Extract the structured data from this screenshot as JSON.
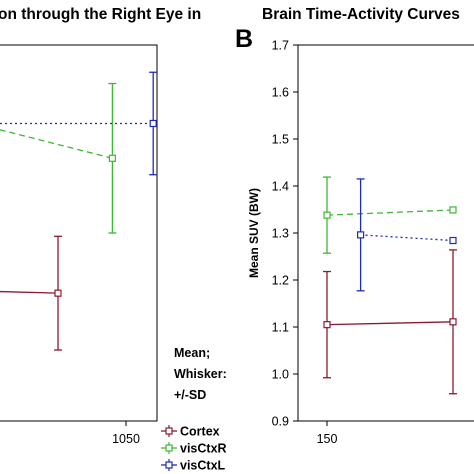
{
  "chart_data": [
    {
      "type": "line",
      "title": "on through the Right Eye in",
      "x_ticks": [
        {
          "value": 1050,
          "label": "1050"
        }
      ],
      "ylim": [
        0.9,
        1.7
      ],
      "series": [
        {
          "name": "Cortex",
          "color": "#8b1a2e",
          "dash": "solid",
          "points": [
            {
              "x": 950,
              "y": 1.176,
              "sd": null
            },
            {
              "x": 1000,
              "y": 1.172,
              "sd": 0.121
            }
          ]
        },
        {
          "name": "visCtxR",
          "color": "#3cb832",
          "dash": "6,4",
          "points": [
            {
              "x": 950,
              "y": 1.525,
              "sd": null
            },
            {
              "x": 1040,
              "y": 1.459,
              "sd": 0.159
            }
          ]
        },
        {
          "name": "visCtxL",
          "color": "#1e2cb4",
          "dash": "2,3",
          "points": [
            {
              "x": 950,
              "y": 1.533,
              "sd": null
            },
            {
              "x": 1070,
              "y": 1.533,
              "sd": 0.109
            }
          ]
        }
      ]
    },
    {
      "type": "line",
      "panel_label": "B",
      "title": "Brain Time-Activity Curves",
      "ylabel": "Mean SUV (BW)",
      "ylim": [
        0.9,
        1.7
      ],
      "y_ticks": [
        "1.7",
        "1.6",
        "1.5",
        "1.4",
        "1.3",
        "1.2",
        "1.1",
        "1.0",
        "0.9"
      ],
      "x_ticks": [
        {
          "value": 150,
          "label": "150"
        }
      ],
      "series": [
        {
          "name": "Cortex",
          "color": "#8b1a2e",
          "dash": "solid",
          "points": [
            {
              "x": 150,
              "y": 1.105,
              "sd": 0.113
            },
            {
              "x": 300,
              "y": 1.111,
              "sd": 0.153
            }
          ]
        },
        {
          "name": "visCtxR",
          "color": "#3cb832",
          "dash": "6,4",
          "points": [
            {
              "x": 150,
              "y": 1.338,
              "sd": 0.081
            },
            {
              "x": 300,
              "y": 1.349,
              "sd": null
            }
          ]
        },
        {
          "name": "visCtxL",
          "color": "#1e2cb4",
          "dash": "2,3",
          "points": [
            {
              "x": 190,
              "y": 1.296,
              "sd": 0.119
            },
            {
              "x": 300,
              "y": 1.284,
              "sd": null
            }
          ]
        }
      ]
    }
  ],
  "legend": {
    "note_line1": "Mean;",
    "note_line2": "Whisker:",
    "note_line3": "+/-SD",
    "items": [
      "Cortex",
      "visCtxR",
      "visCtxL"
    ]
  }
}
